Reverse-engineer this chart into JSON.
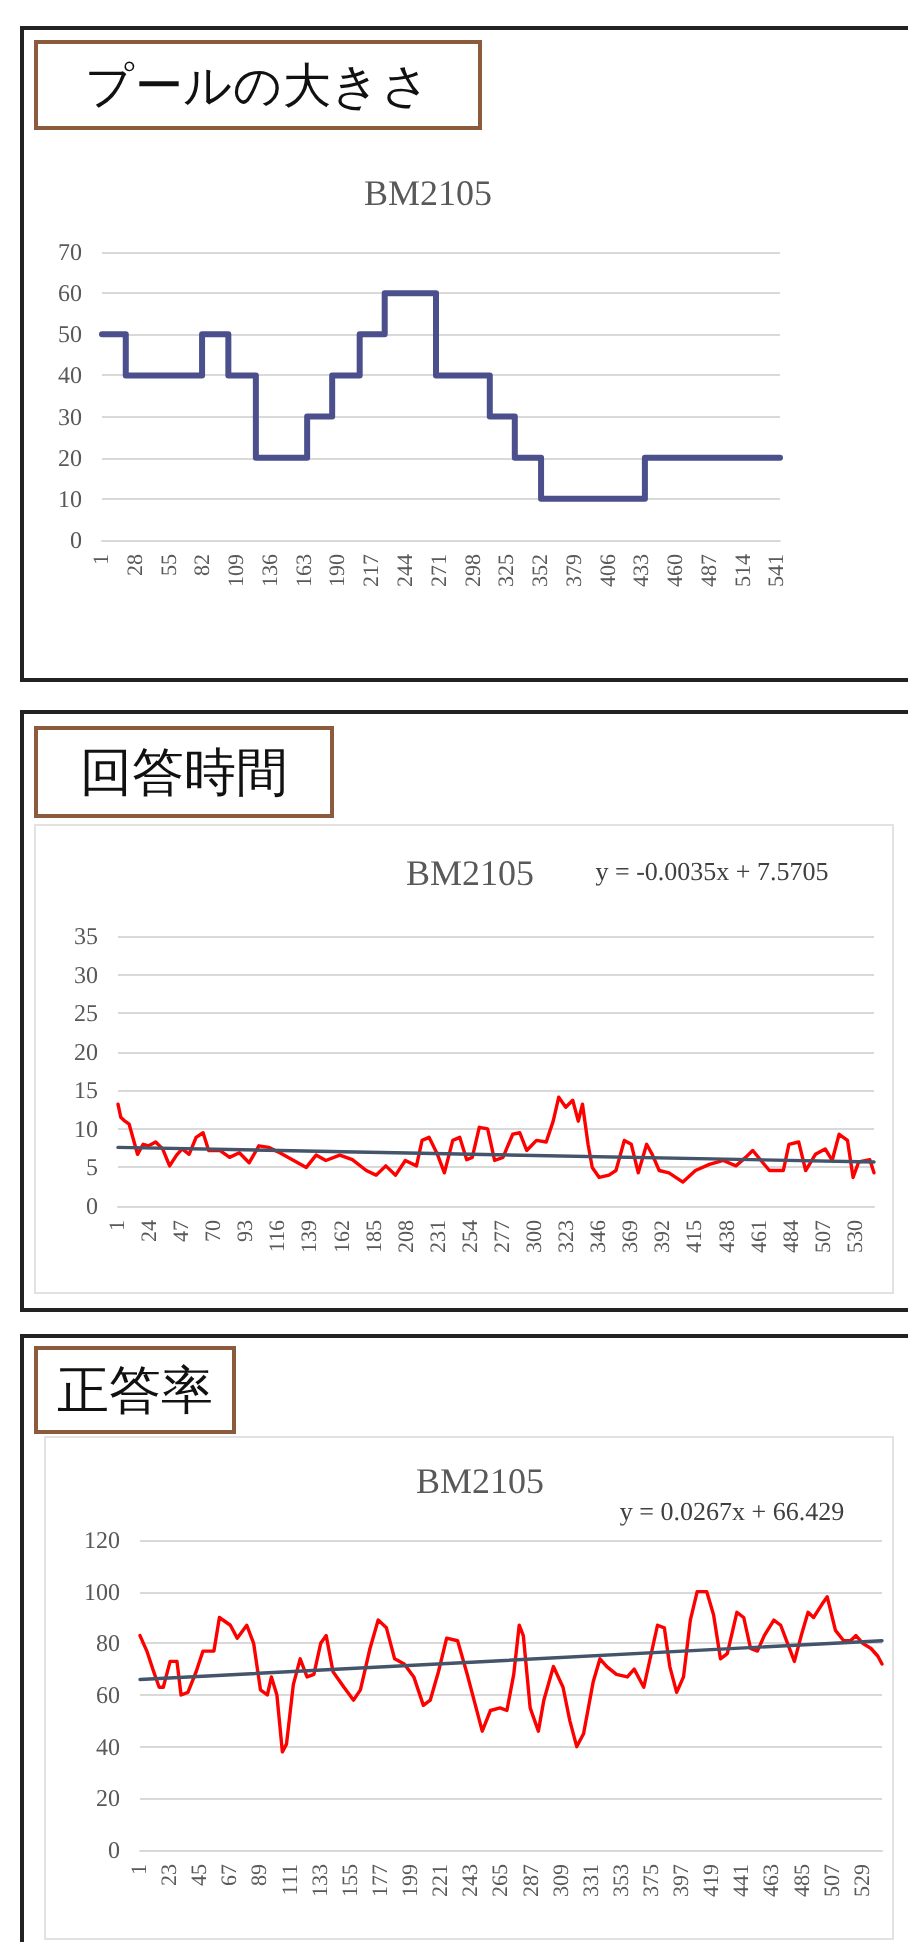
{
  "chart_data": [
    {
      "type": "step",
      "title": "プールの大きさ",
      "subtitle": "BM2105",
      "xlim": [
        1,
        543
      ],
      "xticks": [
        1,
        28,
        55,
        82,
        109,
        136,
        163,
        190,
        217,
        244,
        271,
        298,
        325,
        352,
        379,
        406,
        433,
        460,
        487,
        514,
        541
      ],
      "ylim": [
        0,
        70
      ],
      "yticks": [
        0,
        10,
        20,
        30,
        40,
        50,
        60,
        70
      ],
      "grid": "y",
      "marker": "none",
      "series": [
        {
          "color": "#4b4f8c",
          "x": [
            1,
            20,
            81,
            102,
            124,
            165,
            185,
            207,
            227,
            268,
            311,
            331,
            352,
            435,
            543
          ],
          "values": [
            50,
            40,
            50,
            40,
            20,
            30,
            40,
            50,
            60,
            40,
            30,
            20,
            10,
            20,
            20
          ]
        }
      ]
    },
    {
      "type": "line",
      "title": "回答時間",
      "subtitle": "BM2105",
      "annotations": [
        "y = -0.0035x + 7.5705"
      ],
      "xlim": [
        1,
        543
      ],
      "xticks": [
        1,
        24,
        47,
        70,
        93,
        116,
        139,
        162,
        185,
        208,
        231,
        254,
        277,
        300,
        323,
        346,
        369,
        392,
        415,
        438,
        461,
        484,
        507,
        530
      ],
      "ylim": [
        0,
        35
      ],
      "yticks": [
        0,
        5,
        10,
        15,
        20,
        25,
        30,
        35
      ],
      "grid": "y",
      "marker": "none",
      "series": [
        {
          "color": "#ff0000",
          "x": [
            1,
            3,
            6,
            9,
            11,
            15,
            19,
            23,
            28,
            33,
            38,
            43,
            47,
            52,
            57,
            62,
            66,
            74,
            81,
            88,
            95,
            102,
            109,
            117,
            126,
            136,
            143,
            150,
            160,
            169,
            179,
            186,
            193,
            200,
            207,
            215,
            219,
            224,
            230,
            235,
            241,
            246,
            251,
            255,
            260,
            266,
            271,
            277,
            284,
            289,
            294,
            301,
            308,
            313,
            317,
            322,
            327,
            331,
            334,
            338,
            341,
            346,
            353,
            358,
            364,
            369,
            374,
            380,
            384,
            389,
            396,
            406,
            415,
            425,
            435,
            444,
            451,
            456,
            462,
            468,
            478,
            482,
            489,
            494,
            501,
            508,
            513,
            518,
            524,
            528,
            532,
            540,
            543
          ],
          "values": [
            13.2,
            11.5,
            11,
            10.6,
            9.3,
            6.7,
            8,
            7.8,
            8.3,
            7.4,
            5.2,
            6.6,
            7.4,
            6.7,
            8.9,
            9.5,
            7.2,
            7.2,
            6.3,
            6.9,
            5.6,
            7.8,
            7.6,
            6.9,
            6,
            5,
            6.6,
            5.9,
            6.6,
            6,
            4.6,
            4,
            5.2,
            4,
            5.9,
            5.2,
            8.5,
            8.9,
            6.7,
            4.3,
            8.5,
            8.9,
            6,
            6.3,
            10.2,
            10,
            5.9,
            6.3,
            9.3,
            9.5,
            7.2,
            8.5,
            8.3,
            11,
            14.1,
            12.8,
            13.7,
            11,
            13.2,
            8,
            5,
            3.7,
            4,
            4.6,
            8.5,
            8,
            4.3,
            8,
            6.7,
            4.6,
            4.3,
            3.1,
            4.6,
            5.4,
            5.9,
            5.2,
            6.3,
            7.2,
            5.9,
            4.6,
            4.6,
            8,
            8.3,
            4.6,
            6.7,
            7.4,
            5.9,
            9.3,
            8.5,
            3.7,
            5.7,
            6,
            4.3
          ]
        },
        {
          "type": "line",
          "color": "#44546a",
          "x": [
            1,
            543
          ],
          "values": [
            7.6,
            5.7
          ]
        }
      ]
    },
    {
      "type": "line",
      "title": "正答率",
      "subtitle": "BM2105",
      "annotations": [
        "y = 0.0267x + 66.429"
      ],
      "xlim": [
        1,
        543
      ],
      "xticks": [
        1,
        23,
        45,
        67,
        89,
        111,
        133,
        155,
        177,
        199,
        221,
        243,
        265,
        287,
        309,
        331,
        353,
        375,
        397,
        419,
        441,
        463,
        485,
        507,
        529
      ],
      "ylim": [
        0,
        120
      ],
      "yticks": [
        0,
        20,
        40,
        60,
        80,
        100,
        120
      ],
      "grid": "y",
      "marker": "none",
      "series": [
        {
          "color": "#ff0000",
          "x": [
            1,
            6,
            11,
            15,
            18,
            23,
            28,
            31,
            36,
            42,
            47,
            55,
            59,
            67,
            72,
            79,
            84,
            89,
            94,
            97,
            101,
            105,
            108,
            113,
            118,
            123,
            128,
            133,
            137,
            142,
            150,
            157,
            162,
            169,
            175,
            181,
            187,
            194,
            201,
            208,
            213,
            219,
            225,
            233,
            240,
            245,
            251,
            257,
            264,
            269,
            274,
            278,
            281,
            286,
            292,
            296,
            303,
            310,
            315,
            320,
            325,
            332,
            337,
            342,
            349,
            357,
            362,
            369,
            374,
            379,
            384,
            388,
            393,
            398,
            403,
            408,
            415,
            420,
            425,
            430,
            437,
            442,
            447,
            452,
            457,
            464,
            469,
            474,
            479,
            484,
            489,
            493,
            499,
            503,
            509,
            515,
            520,
            524,
            529,
            535,
            540,
            543
          ],
          "values": [
            83,
            77,
            69,
            63,
            63,
            73,
            73,
            60,
            61,
            69,
            77,
            77,
            90,
            87,
            82,
            87,
            80,
            62,
            60,
            67,
            60,
            38,
            41,
            64,
            74,
            67,
            68,
            80,
            83,
            69,
            63,
            58,
            62,
            78,
            89,
            86,
            74,
            72,
            67,
            56,
            58,
            69,
            82,
            81,
            68,
            58,
            46,
            54,
            55,
            54,
            68,
            87,
            83,
            55,
            46,
            58,
            71,
            63,
            50,
            40,
            45,
            65,
            74,
            71,
            68,
            67,
            70,
            63,
            75,
            87,
            86,
            71,
            61,
            67,
            89,
            100,
            100,
            91,
            74,
            76,
            92,
            90,
            78,
            77,
            83,
            89,
            87,
            80,
            73,
            83,
            92,
            90,
            95,
            98,
            85,
            81,
            81,
            83,
            80,
            78,
            75,
            72
          ]
        },
        {
          "type": "line",
          "color": "#44546a",
          "x": [
            1,
            543
          ],
          "values": [
            66,
            81
          ]
        }
      ]
    }
  ]
}
